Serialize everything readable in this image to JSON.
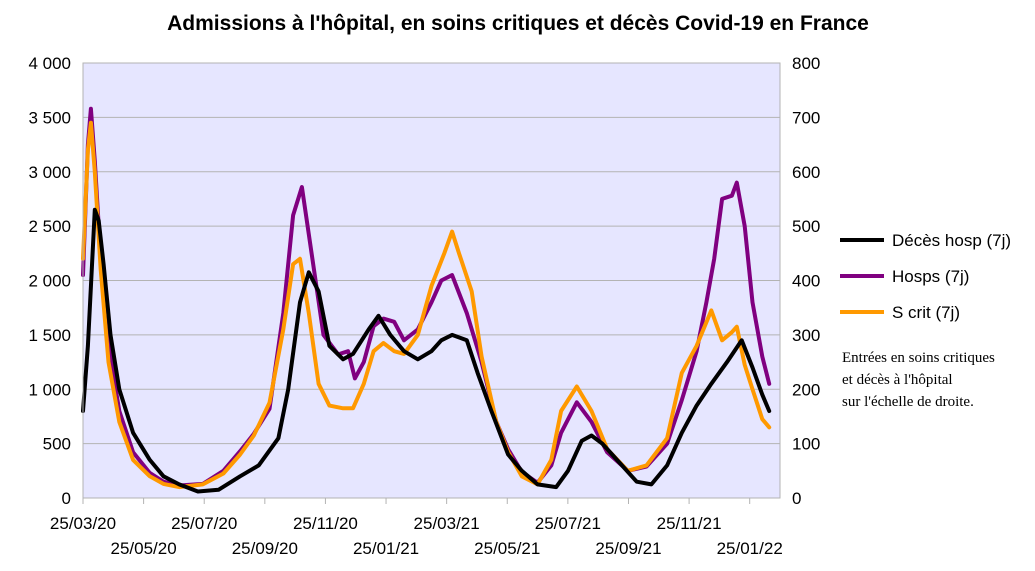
{
  "chart_data": {
    "type": "line",
    "title": "Admissions à l'hôpital, en soins critiques et décès Covid-19 en France",
    "xlabel": "",
    "ylabel_left": "",
    "ylabel_right": "",
    "x_tick_labels": [
      "25/03/20",
      "25/05/20",
      "25/07/20",
      "25/09/20",
      "25/11/20",
      "25/01/21",
      "25/03/21",
      "25/05/21",
      "25/07/21",
      "25/09/21",
      "25/11/21",
      "25/01/22"
    ],
    "x_range": [
      "2020-03-25",
      "2022-03-05"
    ],
    "ylim_left": [
      0,
      4000
    ],
    "ylim_right": [
      0,
      800
    ],
    "y_left_ticks": [
      "0",
      "500",
      "1 000",
      "1 500",
      "2 000",
      "2 500",
      "3 000",
      "3 500",
      "4 000"
    ],
    "y_right_ticks": [
      "0",
      "100",
      "200",
      "300",
      "400",
      "500",
      "600",
      "700",
      "800"
    ],
    "grid": "horizontal",
    "legend_position": "right",
    "plot_background": "#e6e6ff",
    "note": [
      "Entrées en soins critiques",
      "et décès à l'hôpital",
      "sur l'échelle de droite."
    ],
    "series": [
      {
        "name": "Hosps (7j)",
        "axis": "left",
        "color": "#800080",
        "points": [
          [
            "2020-03-25",
            2050
          ],
          [
            "2020-03-30",
            3250
          ],
          [
            "2020-04-02",
            3580
          ],
          [
            "2020-04-06",
            3100
          ],
          [
            "2020-04-12",
            2200
          ],
          [
            "2020-04-20",
            1400
          ],
          [
            "2020-05-01",
            800
          ],
          [
            "2020-05-15",
            420
          ],
          [
            "2020-06-01",
            230
          ],
          [
            "2020-06-15",
            150
          ],
          [
            "2020-07-01",
            115
          ],
          [
            "2020-07-25",
            130
          ],
          [
            "2020-08-15",
            250
          ],
          [
            "2020-09-01",
            430
          ],
          [
            "2020-09-15",
            590
          ],
          [
            "2020-10-01",
            820
          ],
          [
            "2020-10-15",
            1700
          ],
          [
            "2020-10-25",
            2600
          ],
          [
            "2020-11-03",
            2860
          ],
          [
            "2020-11-12",
            2300
          ],
          [
            "2020-11-25",
            1500
          ],
          [
            "2020-12-10",
            1320
          ],
          [
            "2020-12-20",
            1350
          ],
          [
            "2020-12-27",
            1100
          ],
          [
            "2021-01-05",
            1250
          ],
          [
            "2021-01-15",
            1580
          ],
          [
            "2021-01-25",
            1650
          ],
          [
            "2021-02-05",
            1620
          ],
          [
            "2021-02-15",
            1450
          ],
          [
            "2021-03-01",
            1550
          ],
          [
            "2021-03-15",
            1800
          ],
          [
            "2021-03-25",
            2000
          ],
          [
            "2021-04-05",
            2050
          ],
          [
            "2021-04-20",
            1700
          ],
          [
            "2021-05-05",
            1250
          ],
          [
            "2021-05-20",
            700
          ],
          [
            "2021-06-01",
            450
          ],
          [
            "2021-06-15",
            240
          ],
          [
            "2021-07-01",
            140
          ],
          [
            "2021-07-15",
            300
          ],
          [
            "2021-07-25",
            600
          ],
          [
            "2021-08-10",
            880
          ],
          [
            "2021-08-25",
            700
          ],
          [
            "2021-09-10",
            420
          ],
          [
            "2021-10-01",
            250
          ],
          [
            "2021-10-20",
            290
          ],
          [
            "2021-11-10",
            500
          ],
          [
            "2021-11-25",
            900
          ],
          [
            "2021-12-10",
            1350
          ],
          [
            "2021-12-20",
            1800
          ],
          [
            "2021-12-28",
            2200
          ],
          [
            "2022-01-05",
            2750
          ],
          [
            "2022-01-15",
            2780
          ],
          [
            "2022-01-20",
            2900
          ],
          [
            "2022-01-28",
            2500
          ],
          [
            "2022-02-05",
            1800
          ],
          [
            "2022-02-15",
            1300
          ],
          [
            "2022-02-22",
            1050
          ]
        ]
      },
      {
        "name": "S crit (7j)",
        "axis": "right",
        "color": "#ff9900",
        "points": [
          [
            "2020-03-25",
            440
          ],
          [
            "2020-03-30",
            640
          ],
          [
            "2020-04-02",
            690
          ],
          [
            "2020-04-06",
            600
          ],
          [
            "2020-04-12",
            420
          ],
          [
            "2020-04-20",
            250
          ],
          [
            "2020-05-01",
            140
          ],
          [
            "2020-05-15",
            70
          ],
          [
            "2020-06-01",
            40
          ],
          [
            "2020-06-15",
            26
          ],
          [
            "2020-07-01",
            20
          ],
          [
            "2020-07-25",
            25
          ],
          [
            "2020-08-15",
            45
          ],
          [
            "2020-09-01",
            80
          ],
          [
            "2020-09-15",
            115
          ],
          [
            "2020-10-01",
            175
          ],
          [
            "2020-10-15",
            310
          ],
          [
            "2020-10-25",
            430
          ],
          [
            "2020-11-01",
            440
          ],
          [
            "2020-11-10",
            340
          ],
          [
            "2020-11-20",
            210
          ],
          [
            "2020-12-01",
            170
          ],
          [
            "2020-12-15",
            165
          ],
          [
            "2020-12-25",
            165
          ],
          [
            "2021-01-05",
            210
          ],
          [
            "2021-01-15",
            270
          ],
          [
            "2021-01-25",
            285
          ],
          [
            "2021-02-05",
            270
          ],
          [
            "2021-02-15",
            265
          ],
          [
            "2021-03-01",
            300
          ],
          [
            "2021-03-15",
            390
          ],
          [
            "2021-03-28",
            450
          ],
          [
            "2021-04-05",
            490
          ],
          [
            "2021-04-12",
            450
          ],
          [
            "2021-04-25",
            380
          ],
          [
            "2021-05-05",
            260
          ],
          [
            "2021-05-20",
            140
          ],
          [
            "2021-06-01",
            85
          ],
          [
            "2021-06-15",
            40
          ],
          [
            "2021-07-01",
            25
          ],
          [
            "2021-07-15",
            70
          ],
          [
            "2021-07-25",
            160
          ],
          [
            "2021-08-10",
            205
          ],
          [
            "2021-08-25",
            160
          ],
          [
            "2021-09-10",
            90
          ],
          [
            "2021-10-01",
            50
          ],
          [
            "2021-10-20",
            60
          ],
          [
            "2021-11-10",
            110
          ],
          [
            "2021-11-25",
            230
          ],
          [
            "2021-12-10",
            280
          ],
          [
            "2021-12-25",
            345
          ],
          [
            "2022-01-05",
            290
          ],
          [
            "2022-01-15",
            305
          ],
          [
            "2022-01-20",
            315
          ],
          [
            "2022-01-28",
            245
          ],
          [
            "2022-02-05",
            200
          ],
          [
            "2022-02-15",
            145
          ],
          [
            "2022-02-22",
            130
          ]
        ]
      },
      {
        "name": "Décès hosp (7j)",
        "axis": "right",
        "color": "#000000",
        "points": [
          [
            "2020-03-25",
            160
          ],
          [
            "2020-03-30",
            280
          ],
          [
            "2020-04-06",
            530
          ],
          [
            "2020-04-10",
            510
          ],
          [
            "2020-04-15",
            430
          ],
          [
            "2020-04-22",
            300
          ],
          [
            "2020-05-01",
            200
          ],
          [
            "2020-05-15",
            120
          ],
          [
            "2020-06-01",
            70
          ],
          [
            "2020-06-15",
            40
          ],
          [
            "2020-07-01",
            25
          ],
          [
            "2020-07-20",
            12
          ],
          [
            "2020-08-10",
            15
          ],
          [
            "2020-09-01",
            40
          ],
          [
            "2020-09-20",
            60
          ],
          [
            "2020-10-10",
            110
          ],
          [
            "2020-10-20",
            200
          ],
          [
            "2020-11-01",
            360
          ],
          [
            "2020-11-10",
            415
          ],
          [
            "2020-11-20",
            380
          ],
          [
            "2020-12-01",
            280
          ],
          [
            "2020-12-15",
            255
          ],
          [
            "2020-12-25",
            265
          ],
          [
            "2021-01-10",
            310
          ],
          [
            "2021-01-20",
            335
          ],
          [
            "2021-02-01",
            300
          ],
          [
            "2021-02-15",
            270
          ],
          [
            "2021-03-01",
            255
          ],
          [
            "2021-03-15",
            270
          ],
          [
            "2021-03-25",
            290
          ],
          [
            "2021-04-05",
            300
          ],
          [
            "2021-04-20",
            290
          ],
          [
            "2021-05-01",
            230
          ],
          [
            "2021-05-15",
            160
          ],
          [
            "2021-06-01",
            80
          ],
          [
            "2021-06-15",
            50
          ],
          [
            "2021-07-01",
            25
          ],
          [
            "2021-07-20",
            20
          ],
          [
            "2021-08-01",
            50
          ],
          [
            "2021-08-15",
            105
          ],
          [
            "2021-08-25",
            115
          ],
          [
            "2021-09-05",
            100
          ],
          [
            "2021-09-20",
            70
          ],
          [
            "2021-10-10",
            30
          ],
          [
            "2021-10-25",
            25
          ],
          [
            "2021-11-10",
            60
          ],
          [
            "2021-11-25",
            120
          ],
          [
            "2021-12-10",
            170
          ],
          [
            "2021-12-25",
            210
          ],
          [
            "2022-01-10",
            250
          ],
          [
            "2022-01-25",
            290
          ],
          [
            "2022-02-05",
            240
          ],
          [
            "2022-02-15",
            190
          ],
          [
            "2022-02-22",
            160
          ]
        ]
      }
    ]
  }
}
